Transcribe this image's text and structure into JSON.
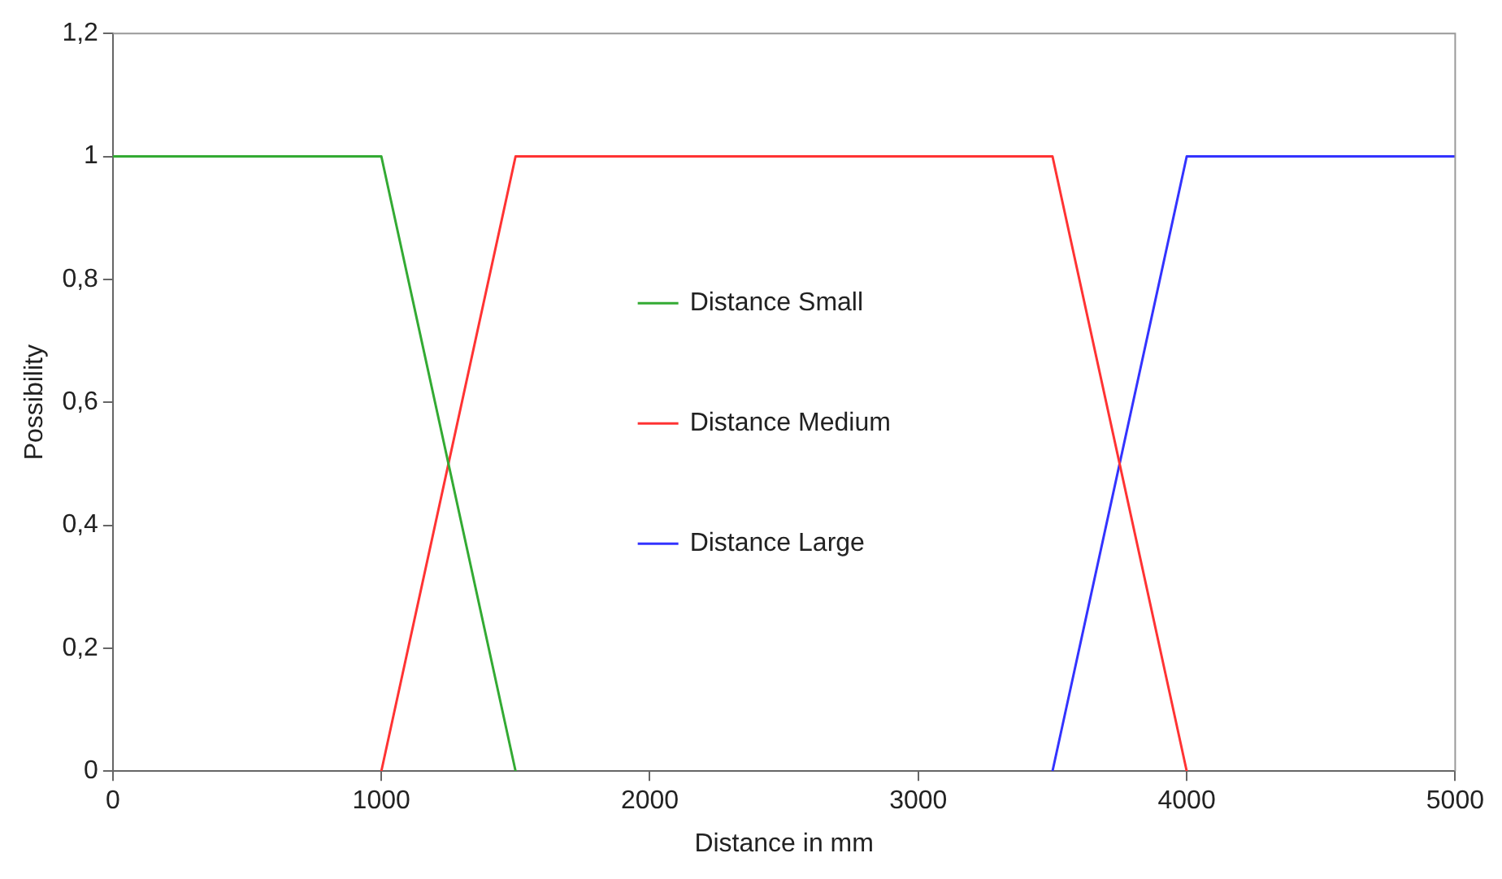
{
  "chart_data": {
    "type": "line",
    "xlabel": "Distance in mm",
    "ylabel": "Possibility",
    "xlim": [
      0,
      5000
    ],
    "xticks": [
      0,
      1000,
      2000,
      3000,
      4000,
      5000
    ],
    "ylim": [
      0,
      1.2
    ],
    "yticks": [
      0,
      {
        "value": 0.2,
        "label": "0,2"
      },
      {
        "value": 0.4,
        "label": "0,4"
      },
      {
        "value": 0.6,
        "label": "0,6"
      },
      {
        "value": 0.8,
        "label": "0,8"
      },
      1,
      {
        "value": 1.2,
        "label": "1,2"
      }
    ],
    "grid": false,
    "legend": "center",
    "marker": "none",
    "line_style": "solid",
    "series": [
      {
        "name": "Distance Small",
        "color": "#33aa33",
        "x": [
          0,
          1000,
          1500
        ],
        "values": [
          1,
          1,
          0
        ]
      },
      {
        "name": "Distance Medium",
        "color": "#ff3333",
        "x": [
          1000,
          1500,
          3500,
          4000
        ],
        "values": [
          0,
          1,
          1,
          0
        ]
      },
      {
        "name": "Distance Large",
        "color": "#3333ff",
        "x": [
          3500,
          4000,
          5000
        ],
        "values": [
          0,
          1,
          1
        ]
      }
    ]
  }
}
